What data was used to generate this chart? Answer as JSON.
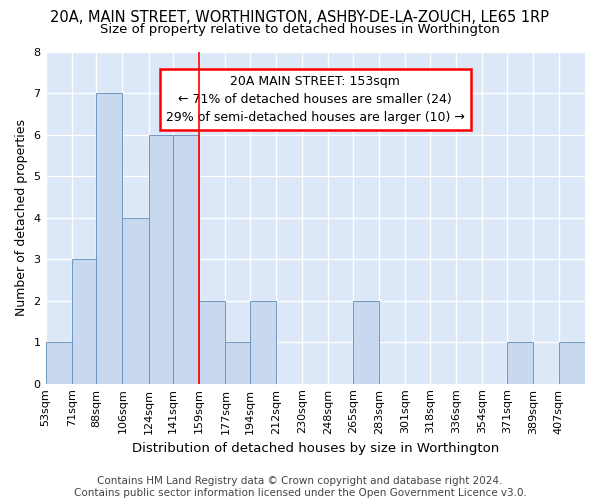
{
  "title_line1": "20A, MAIN STREET, WORTHINGTON, ASHBY-DE-LA-ZOUCH, LE65 1RP",
  "title_line2": "Size of property relative to detached houses in Worthington",
  "xlabel": "Distribution of detached houses by size in Worthington",
  "ylabel": "Number of detached properties",
  "footnote": "Contains HM Land Registry data © Crown copyright and database right 2024.\nContains public sector information licensed under the Open Government Licence v3.0.",
  "bins": [
    53,
    71,
    88,
    106,
    124,
    141,
    159,
    177,
    194,
    212,
    230,
    248,
    265,
    283,
    301,
    318,
    336,
    354,
    371,
    389,
    407
  ],
  "bin_width": 18,
  "counts": [
    1,
    3,
    7,
    4,
    6,
    6,
    2,
    1,
    2,
    0,
    0,
    0,
    2,
    0,
    0,
    0,
    0,
    0,
    1,
    0,
    1
  ],
  "bar_color": "#c8d8ee",
  "bar_edge_color": "#7098c0",
  "red_line_x": 159,
  "annotation_text": "20A MAIN STREET: 153sqm\n← 71% of detached houses are smaller (24)\n29% of semi-detached houses are larger (10) →",
  "annotation_box_color": "white",
  "annotation_box_edge": "red",
  "ylim": [
    0,
    8
  ],
  "yticks": [
    0,
    1,
    2,
    3,
    4,
    5,
    6,
    7,
    8
  ],
  "fig_background": "white",
  "plot_background": "#dce8f8",
  "grid_color": "white",
  "title_fontsize": 10.5,
  "subtitle_fontsize": 9.5,
  "xlabel_fontsize": 9.5,
  "ylabel_fontsize": 9,
  "tick_fontsize": 8,
  "annotation_fontsize": 9,
  "footnote_fontsize": 7.5
}
